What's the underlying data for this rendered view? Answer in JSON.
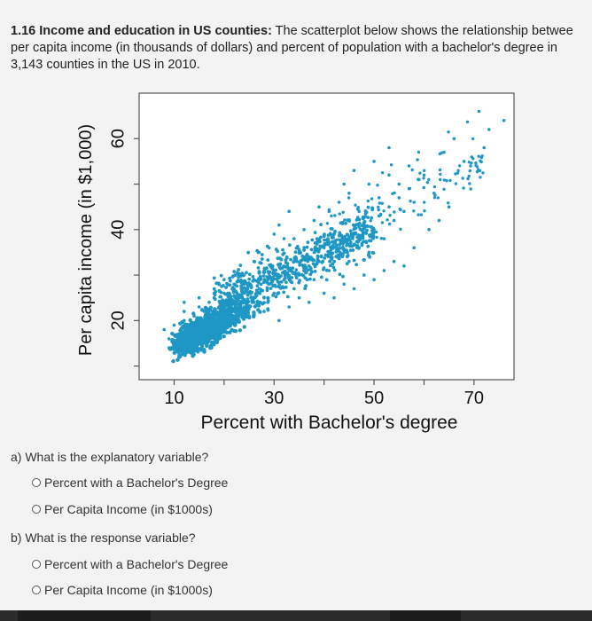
{
  "question": {
    "number_title": "1.16 Income and education in US counties:",
    "line1_rest": " The scatterplot below shows the relationship betwee",
    "line2": "per capita income (in thousands of dollars) and percent of population with a bachelor's degree in",
    "line3": "3,143 counties in the US in 2010."
  },
  "chart_data": {
    "type": "scatter",
    "xlabel": "Percent with Bachelor's degree",
    "ylabel": "Per capita income (in $1,000)",
    "xlim": [
      3,
      78
    ],
    "ylim": [
      7,
      70
    ],
    "x_ticks": [
      10,
      20,
      30,
      40,
      50,
      60,
      70
    ],
    "x_tick_labels": [
      "10",
      "30",
      "50",
      "70"
    ],
    "y_ticks": [
      10,
      20,
      30,
      40,
      50,
      60
    ],
    "y_tick_labels": [
      "20",
      "40",
      "60"
    ],
    "grid": false,
    "point_color": "#1e97c5",
    "n_points": 3143,
    "points": [
      [
        8,
        18
      ],
      [
        9,
        16
      ],
      [
        10,
        19
      ],
      [
        11,
        17
      ],
      [
        12,
        20
      ],
      [
        12,
        22
      ],
      [
        13,
        18
      ],
      [
        14,
        21
      ],
      [
        15,
        20
      ],
      [
        15,
        23
      ],
      [
        16,
        22
      ],
      [
        17,
        19
      ],
      [
        17,
        24
      ],
      [
        18,
        21
      ],
      [
        18,
        25
      ],
      [
        19,
        23
      ],
      [
        20,
        22
      ],
      [
        20,
        26
      ],
      [
        21,
        24
      ],
      [
        22,
        20
      ],
      [
        22,
        27
      ],
      [
        23,
        25
      ],
      [
        24,
        23
      ],
      [
        24,
        28
      ],
      [
        25,
        26
      ],
      [
        26,
        24
      ],
      [
        26,
        29
      ],
      [
        27,
        27
      ],
      [
        28,
        25
      ],
      [
        28,
        31
      ],
      [
        29,
        28
      ],
      [
        30,
        30
      ],
      [
        30,
        26
      ],
      [
        31,
        32
      ],
      [
        32,
        29
      ],
      [
        33,
        31
      ],
      [
        34,
        27
      ],
      [
        34,
        33
      ],
      [
        35,
        30
      ],
      [
        36,
        34
      ],
      [
        37,
        32
      ],
      [
        38,
        29
      ],
      [
        38,
        35
      ],
      [
        39,
        33
      ],
      [
        40,
        36
      ],
      [
        41,
        31
      ],
      [
        42,
        37
      ],
      [
        43,
        34
      ],
      [
        44,
        38
      ],
      [
        45,
        33
      ],
      [
        46,
        39
      ],
      [
        47,
        36
      ],
      [
        48,
        41
      ],
      [
        49,
        35
      ],
      [
        50,
        40
      ],
      [
        51,
        43
      ],
      [
        52,
        38
      ],
      [
        53,
        45
      ],
      [
        54,
        42
      ],
      [
        55,
        47
      ],
      [
        56,
        44
      ],
      [
        57,
        49
      ],
      [
        58,
        46
      ],
      [
        60,
        52
      ],
      [
        62,
        48
      ],
      [
        64,
        57
      ],
      [
        66,
        60
      ],
      [
        68,
        55
      ],
      [
        72,
        58
      ],
      [
        73,
        62
      ],
      [
        71,
        66
      ],
      [
        76,
        64
      ],
      [
        9,
        14
      ],
      [
        11,
        15
      ],
      [
        13,
        16
      ],
      [
        14,
        17
      ],
      [
        16,
        17
      ],
      [
        19,
        18
      ],
      [
        21,
        19
      ],
      [
        23,
        20
      ],
      [
        25,
        21
      ],
      [
        28,
        22
      ],
      [
        31,
        20
      ],
      [
        33,
        23
      ],
      [
        35,
        25
      ],
      [
        37,
        24
      ],
      [
        40,
        26
      ],
      [
        42,
        25
      ],
      [
        44,
        28
      ],
      [
        46,
        27
      ],
      [
        48,
        30
      ],
      [
        50,
        29
      ],
      [
        52,
        31
      ],
      [
        54,
        33
      ],
      [
        56,
        32
      ],
      [
        58,
        36
      ],
      [
        61,
        40
      ],
      [
        63,
        42
      ],
      [
        65,
        45
      ],
      [
        26,
        33
      ],
      [
        29,
        36
      ],
      [
        32,
        38
      ],
      [
        24,
        30
      ],
      [
        36,
        40
      ],
      [
        38,
        42
      ],
      [
        41,
        44
      ],
      [
        43,
        46
      ],
      [
        45,
        48
      ],
      [
        47,
        44
      ],
      [
        49,
        50
      ],
      [
        51,
        47
      ],
      [
        53,
        52
      ],
      [
        55,
        50
      ],
      [
        57,
        54
      ],
      [
        59,
        51
      ],
      [
        27,
        35
      ],
      [
        31,
        41
      ],
      [
        22,
        28
      ],
      [
        20,
        29
      ],
      [
        18,
        26
      ],
      [
        15,
        25
      ],
      [
        12,
        24
      ],
      [
        34,
        38
      ],
      [
        39,
        45
      ],
      [
        44,
        50
      ],
      [
        46,
        53
      ],
      [
        50,
        55
      ],
      [
        53,
        58
      ],
      [
        33,
        44
      ],
      [
        30,
        39
      ]
    ]
  },
  "part_a": {
    "prompt": "a) What is the explanatory variable?",
    "options": [
      "Percent with a Bachelor's Degree",
      "Per Capita Income (in $1000s)"
    ]
  },
  "part_b": {
    "prompt": "b) What is the response variable?",
    "options": [
      "Percent with a Bachelor's Degree",
      "Per Capita Income (in $1000s)"
    ]
  }
}
